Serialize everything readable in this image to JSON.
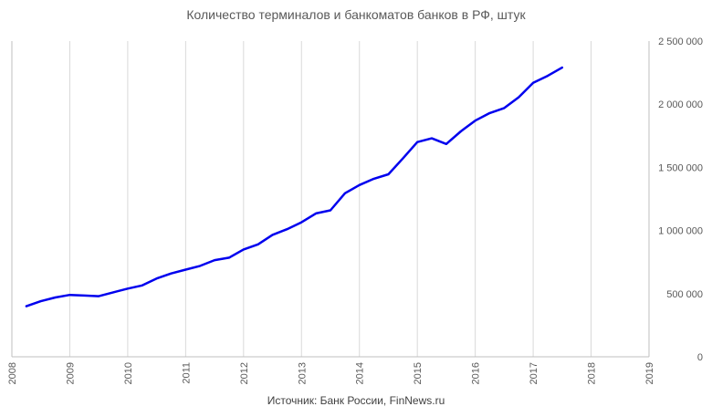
{
  "chart_data": {
    "type": "line",
    "title": "Количество терминалов и банкоматов банков в РФ, штук",
    "source": "Источник: Банк России, FinNews.ru",
    "xlabel": "",
    "ylabel": "",
    "xlim": [
      2008,
      2019
    ],
    "ylim": [
      0,
      2500000
    ],
    "x_ticks": [
      "2008",
      "2009",
      "2010",
      "2011",
      "2012",
      "2013",
      "2014",
      "2015",
      "2016",
      "2017",
      "2018",
      "2019"
    ],
    "y_ticks": [
      "0",
      "500 000",
      "1 000 000",
      "1 500 000",
      "2 000 000",
      "2 500 000"
    ],
    "y_axis_side": "right",
    "grid": "vertical",
    "line_color": "#0000ee",
    "series": [
      {
        "x": [
          2008.25,
          2008.5,
          2008.75,
          2009.0,
          2009.25,
          2009.5,
          2009.75,
          2010.0,
          2010.25,
          2010.5,
          2010.75,
          2011.0,
          2011.25,
          2011.5,
          2011.75,
          2012.0,
          2012.25,
          2012.5,
          2012.75,
          2013.0,
          2013.25,
          2013.5,
          2013.75,
          2014.0,
          2014.25,
          2014.5,
          2014.75,
          2015.0,
          2015.25,
          2015.5,
          2015.75,
          2016.0,
          2016.25,
          2016.5,
          2016.75,
          2017.0,
          2017.25,
          2017.5
        ],
        "values": [
          400000,
          440000,
          470000,
          490000,
          485000,
          480000,
          510000,
          540000,
          565000,
          620000,
          660000,
          690000,
          720000,
          765000,
          785000,
          850000,
          890000,
          965000,
          1010000,
          1065000,
          1135000,
          1160000,
          1295000,
          1360000,
          1410000,
          1445000,
          1570000,
          1700000,
          1730000,
          1685000,
          1785000,
          1870000,
          1930000,
          1970000,
          2055000,
          2170000,
          2225000,
          2290000
        ]
      }
    ]
  }
}
